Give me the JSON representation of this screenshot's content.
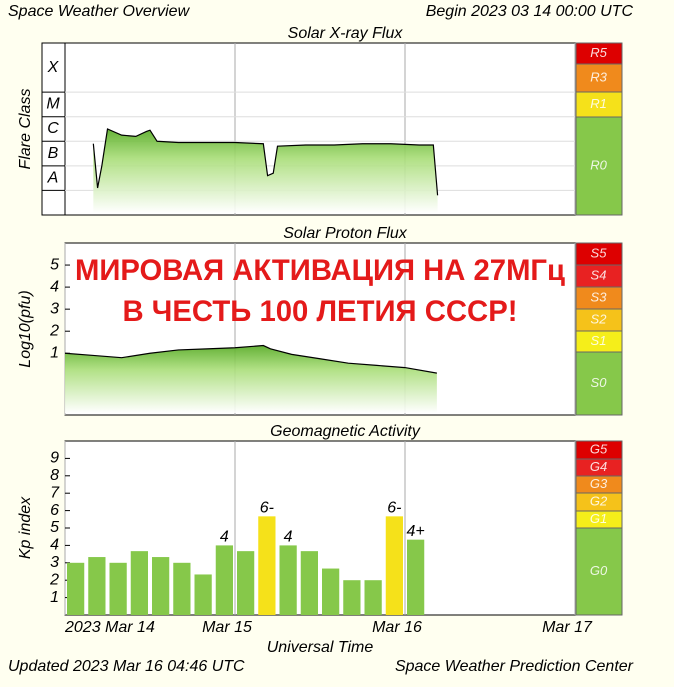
{
  "header": {
    "title": "Space Weather Overview",
    "begin": "Begin 2023 03 14 00:00 UTC",
    "updated": "Updated 2023 Mar 16 04:46 UTC",
    "source": "Space Weather Prediction Center"
  },
  "x_axis": {
    "label": "Universal Time",
    "xlim": [
      0,
      72
    ],
    "xticks": [
      {
        "value": 0,
        "label": "2023 Mar 14"
      },
      {
        "value": 24,
        "label": "Mar 15"
      },
      {
        "value": 48,
        "label": "Mar 16"
      },
      {
        "value": 72,
        "label": "Mar 17"
      }
    ]
  },
  "chart_data": [
    {
      "type": "area",
      "title": "Solar X-ray Flux",
      "y_label": "Flare Class",
      "color": "#55aa22",
      "ylim": [
        -9,
        -2
      ],
      "yticks": [
        {
          "value": -7.5,
          "label": "A"
        },
        {
          "value": -6.5,
          "label": "B"
        },
        {
          "value": -5.5,
          "label": "C"
        },
        {
          "value": -4.5,
          "label": "M"
        },
        {
          "value": -3,
          "label": "X"
        }
      ],
      "x": [
        4,
        4.6,
        5.2,
        6,
        8,
        10,
        11.5,
        12,
        13,
        16,
        20,
        24,
        28,
        28.6,
        29.4,
        30,
        34,
        38,
        42,
        46,
        50,
        52,
        52.6
      ],
      "values": [
        -6.1,
        -7.9,
        -7.0,
        -5.5,
        -5.75,
        -5.8,
        -5.6,
        -5.55,
        -6.0,
        -6.05,
        -6.05,
        -6.05,
        -6.1,
        -7.4,
        -7.3,
        -6.2,
        -6.15,
        -6.15,
        -6.1,
        -6.1,
        -6.15,
        -6.15,
        -8.2
      ],
      "scale": [
        {
          "label": "R5",
          "color": "#dd0000"
        },
        {
          "label": "R3",
          "color": "#f08a1c"
        },
        {
          "label": "R1",
          "color": "#f5e11a"
        },
        {
          "label": "R0",
          "color": "#86c84a"
        }
      ]
    },
    {
      "type": "area",
      "title": "Solar Proton Flux",
      "y_label": "Log10(pfu)",
      "color": "#55aa22",
      "ylim": [
        -1.8,
        6
      ],
      "yticks": [
        1,
        2,
        3,
        4,
        5
      ],
      "x": [
        0,
        4,
        8,
        12,
        16,
        20,
        24,
        28,
        29,
        32,
        36,
        40,
        44,
        48,
        52.5
      ],
      "values": [
        1.0,
        0.9,
        0.8,
        1.0,
        1.15,
        1.2,
        1.25,
        1.35,
        1.2,
        0.95,
        0.75,
        0.55,
        0.45,
        0.35,
        0.1
      ],
      "scale": [
        {
          "label": "S5",
          "color": "#dd0000"
        },
        {
          "label": "S4",
          "color": "#e82222"
        },
        {
          "label": "S3",
          "color": "#f08a1c"
        },
        {
          "label": "S2",
          "color": "#f5c21a"
        },
        {
          "label": "S1",
          "color": "#f5ee1a"
        },
        {
          "label": "S0",
          "color": "#86c84a"
        }
      ],
      "annotations": [
        "МИРОВАЯ АКТИВАЦИЯ НА 27МГц",
        "В ЧЕСТЬ 100 ЛЕТИЯ СССР!"
      ]
    },
    {
      "type": "bar",
      "title": "Geomagnetic Activity",
      "y_label": "Kp index",
      "ylim": [
        0,
        10
      ],
      "yticks": [
        1,
        2,
        3,
        4,
        5,
        6,
        7,
        8,
        9
      ],
      "bar_width": 3,
      "x": [
        0,
        3,
        6,
        9,
        12,
        15,
        18,
        21,
        24,
        27,
        30,
        33,
        36,
        39,
        42,
        45,
        48
      ],
      "values": [
        3.0,
        3.33,
        3.0,
        3.67,
        3.33,
        3.0,
        2.33,
        4.0,
        3.67,
        5.67,
        4.0,
        3.67,
        2.67,
        2.0,
        2.0,
        5.67,
        4.33
      ],
      "value_labels": [
        null,
        null,
        null,
        null,
        null,
        null,
        null,
        "4",
        null,
        "6-",
        "4",
        null,
        null,
        null,
        null,
        "6-",
        "4+"
      ],
      "colors": [
        "#86c84a",
        "#86c84a",
        "#86c84a",
        "#86c84a",
        "#86c84a",
        "#86c84a",
        "#86c84a",
        "#86c84a",
        "#86c84a",
        "#f5e11a",
        "#86c84a",
        "#86c84a",
        "#86c84a",
        "#86c84a",
        "#86c84a",
        "#f5e11a",
        "#86c84a"
      ],
      "scale": [
        {
          "label": "G5",
          "color": "#dd0000"
        },
        {
          "label": "G4",
          "color": "#e82222"
        },
        {
          "label": "G3",
          "color": "#f08a1c"
        },
        {
          "label": "G2",
          "color": "#f5c21a"
        },
        {
          "label": "G1",
          "color": "#f5ee1a"
        },
        {
          "label": "G0",
          "color": "#86c84a"
        }
      ]
    }
  ]
}
